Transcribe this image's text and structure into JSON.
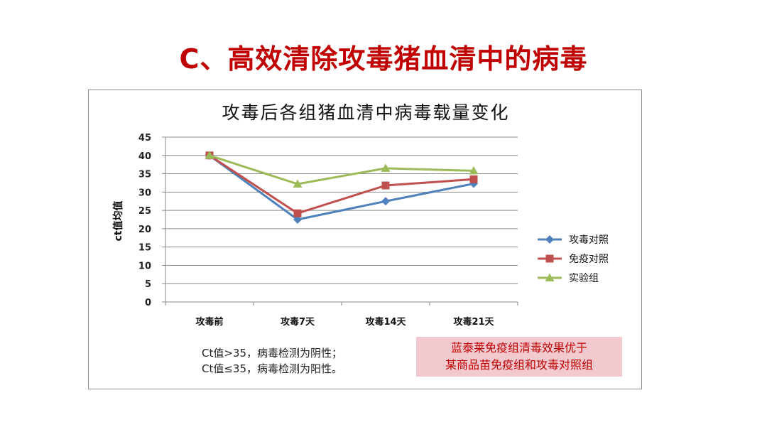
{
  "slide": {
    "title": "C、高效清除攻毒猪血清中的病毒"
  },
  "chart_data": {
    "type": "line",
    "title": "攻毒后各组猪血清中病毒载量变化",
    "xlabel": "",
    "ylabel": "ct值均值",
    "categories": [
      "攻毒前",
      "攻毒7天",
      "攻毒14天",
      "攻毒21天"
    ],
    "ylim": [
      0,
      45
    ],
    "yticks": [
      0,
      5,
      10,
      15,
      20,
      25,
      30,
      35,
      40,
      45
    ],
    "grid": true,
    "legend_position": "right",
    "series": [
      {
        "name": "攻毒对照",
        "values": [
          40,
          22.5,
          27.5,
          32.3
        ],
        "color": "#4f81bd",
        "marker": "diamond"
      },
      {
        "name": "免疫对照",
        "values": [
          40,
          24.2,
          31.8,
          33.5
        ],
        "color": "#c0504d",
        "marker": "square"
      },
      {
        "name": "实验组",
        "values": [
          40,
          32.2,
          36.5,
          35.8
        ],
        "color": "#9bbb59",
        "marker": "triangle"
      }
    ]
  },
  "notes": {
    "line1": "Ct值>35，病毒检测为阴性；",
    "line2": "Ct值≤35，病毒检测为阳性。"
  },
  "highlight": {
    "line1": "蓝泰莱免疫组清毒效果优于",
    "line2": "某商品苗免疫组和攻毒对照组"
  }
}
